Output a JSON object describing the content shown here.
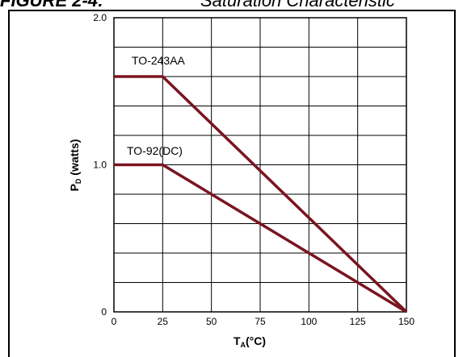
{
  "header": {
    "figure_label": "FIGURE 2-4:",
    "caption": "Saturation Characteristic"
  },
  "chart_data": {
    "type": "line",
    "title": "",
    "xlabel_main": "T",
    "xlabel_sub": "A",
    "xlabel_rest": "(°C)",
    "ylabel_main": "P",
    "ylabel_sub": "D",
    "ylabel_rest": " (watts)",
    "xlim": [
      0,
      150
    ],
    "ylim": [
      0,
      2.0
    ],
    "x_ticks": [
      0,
      25,
      50,
      75,
      100,
      125,
      150
    ],
    "x_tick_labels": [
      "0",
      "25",
      "50",
      "75",
      "100",
      "125",
      "150"
    ],
    "y_ticks": [
      0,
      1.0,
      2.0
    ],
    "y_tick_labels": [
      "0",
      "1.0",
      "2.0"
    ],
    "grid": true,
    "line_color": "#7a1420",
    "series": [
      {
        "name": "TO-243AA",
        "x": [
          0,
          25,
          150
        ],
        "y": [
          1.6,
          1.6,
          0
        ]
      },
      {
        "name": "TO-92(DC)",
        "x": [
          0,
          25,
          150
        ],
        "y": [
          1.0,
          1.0,
          0
        ]
      }
    ]
  }
}
